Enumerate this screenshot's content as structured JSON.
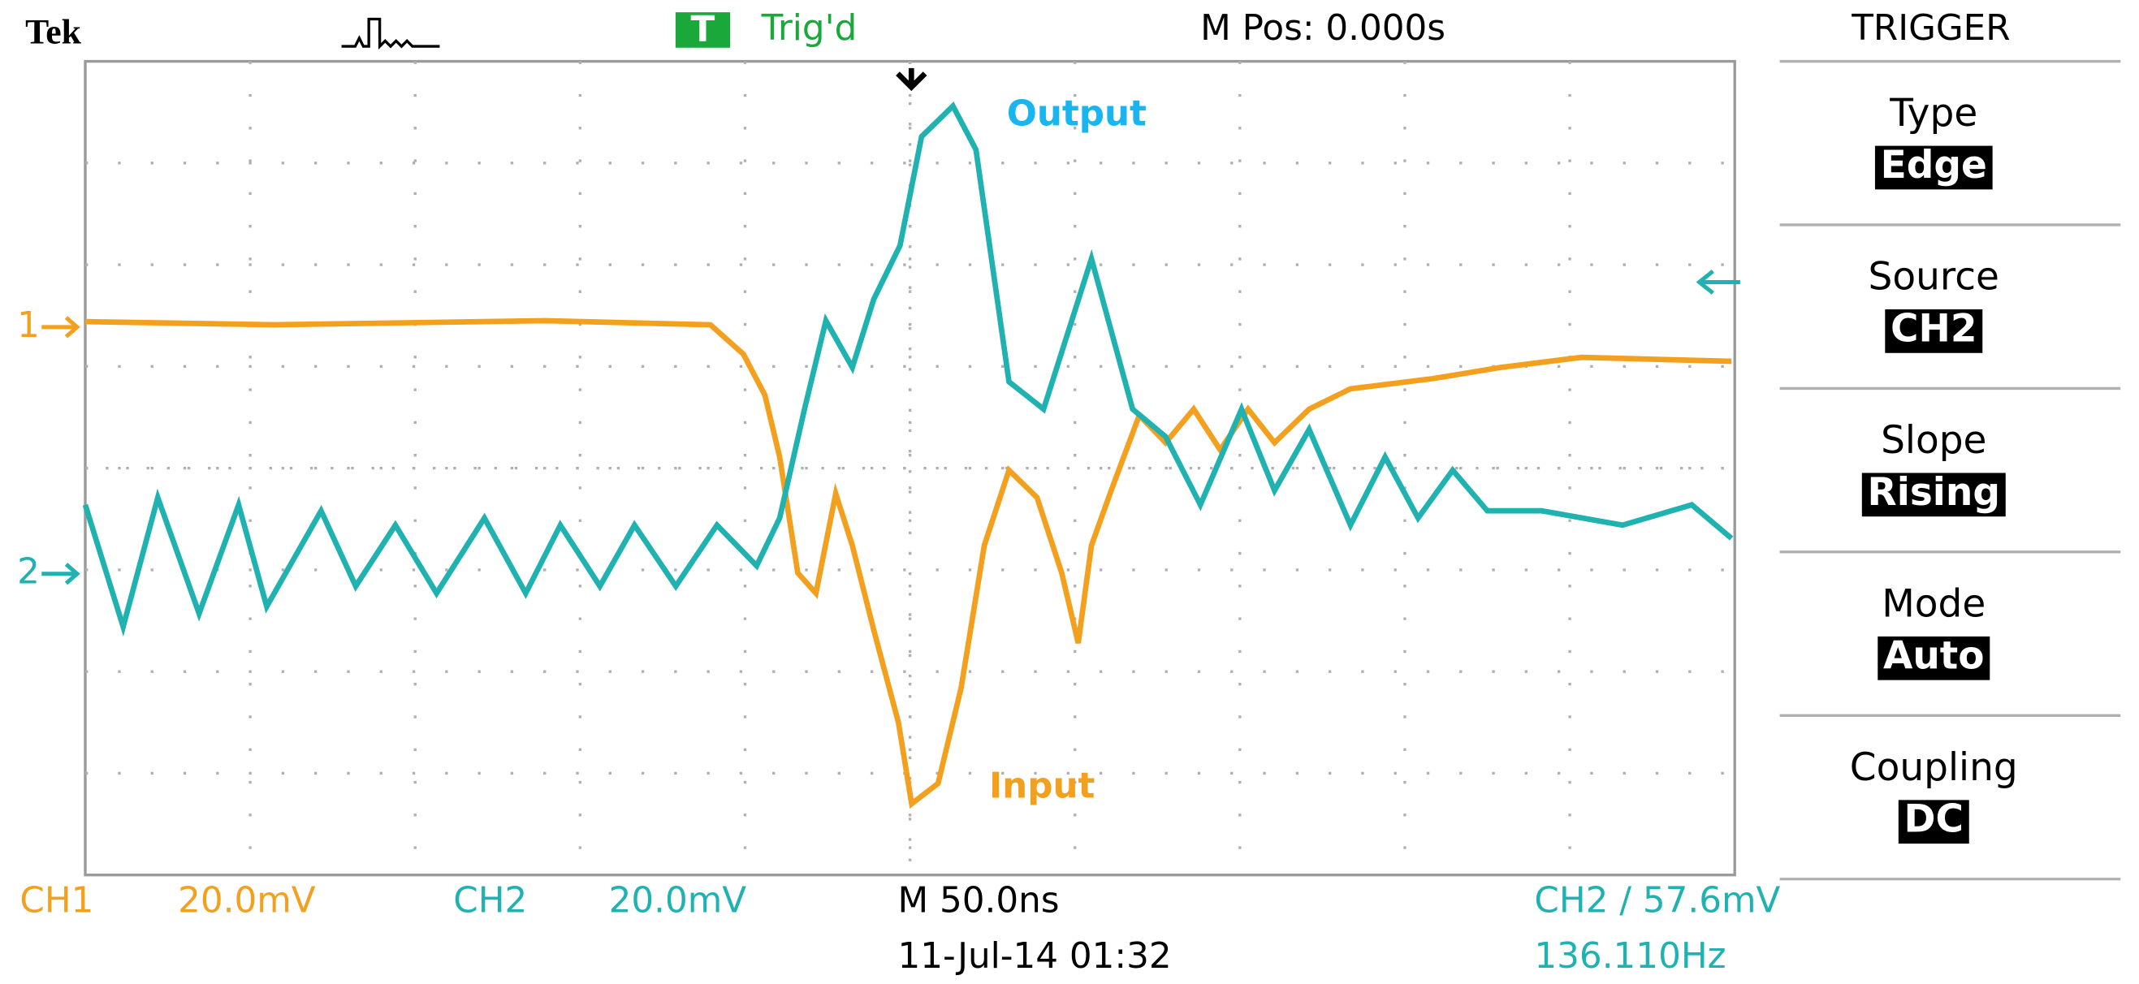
{
  "header": {
    "brand": "Tek",
    "trigger_badge": "T",
    "trigger_status": "Trig'd",
    "position": "M Pos: 0.000s"
  },
  "screen": {
    "annotations": {
      "output": "Output",
      "input": "Input"
    },
    "channel_markers": [
      "1",
      "2"
    ],
    "traces": [
      {
        "color": "#f2a01e",
        "x": [
          0,
          1.14,
          2.79,
          3.79,
          3.99,
          4.12,
          4.21,
          4.32,
          4.43,
          4.55,
          4.65,
          4.78,
          4.93,
          5.01,
          5.17,
          5.31,
          5.45,
          5.6,
          5.77,
          5.92,
          6.02,
          6.1,
          6.22,
          6.39,
          6.55,
          6.72,
          6.88,
          7.05,
          7.21,
          7.42,
          7.67,
          8.17,
          8.58,
          9.07,
          9.98
        ],
        "y": [
          1.44,
          1.41,
          1.45,
          1.41,
          1.12,
          0.72,
          0.11,
          -1.03,
          -1.23,
          -0.25,
          -0.76,
          -1.59,
          -2.5,
          -3.3,
          -3.1,
          -2.16,
          -0.76,
          -0.02,
          -0.29,
          -1.03,
          -1.72,
          -0.76,
          -0.22,
          0.52,
          0.25,
          0.58,
          0.18,
          0.58,
          0.25,
          0.58,
          0.78,
          0.88,
          0.99,
          1.09,
          1.05
        ]
      },
      {
        "color": "#1fb2b0",
        "x": [
          0,
          0.23,
          0.44,
          0.69,
          0.93,
          1.1,
          1.43,
          1.64,
          1.88,
          2.13,
          2.42,
          2.67,
          2.88,
          3.12,
          3.33,
          3.58,
          3.83,
          4.07,
          4.21,
          4.36,
          4.49,
          4.65,
          4.78,
          4.94,
          5.07,
          5.26,
          5.4,
          5.6,
          5.81,
          6.1,
          6.35,
          6.55,
          6.76,
          7.01,
          7.21,
          7.42,
          7.67,
          7.88,
          8.08,
          8.29,
          8.5,
          8.83,
          9.32,
          9.74,
          9.98
        ],
        "y": [
          -0.36,
          -1.56,
          -0.29,
          -1.43,
          -0.36,
          -1.36,
          -0.42,
          -1.16,
          -0.56,
          -1.23,
          -0.49,
          -1.23,
          -0.56,
          -1.16,
          -0.56,
          -1.16,
          -0.56,
          -0.96,
          -0.49,
          0.58,
          1.45,
          0.99,
          1.66,
          2.19,
          3.26,
          3.56,
          3.13,
          0.85,
          0.58,
          2.06,
          0.58,
          0.31,
          -0.36,
          0.58,
          -0.22,
          0.38,
          -0.56,
          0.11,
          -0.49,
          -0.02,
          -0.42,
          -0.42,
          -0.56,
          -0.36,
          -0.69
        ]
      }
    ]
  },
  "footer": {
    "ch1": "CH1",
    "ch1_scale": "20.0mV",
    "ch2": "CH2",
    "ch2_scale": "20.0mV",
    "timebase": "M 50.0ns",
    "trigger": "CH2 / 57.6mV",
    "date": "11-Jul-14 01:32",
    "frequency": "136.110Hz"
  },
  "menu": {
    "title": "TRIGGER",
    "items": [
      {
        "label": "Type",
        "value": "Edge"
      },
      {
        "label": "Source",
        "value": "CH2"
      },
      {
        "label": "Slope",
        "value": "Rising"
      },
      {
        "label": "Mode",
        "value": "Auto"
      },
      {
        "label": "Coupling",
        "value": "DC"
      }
    ]
  }
}
